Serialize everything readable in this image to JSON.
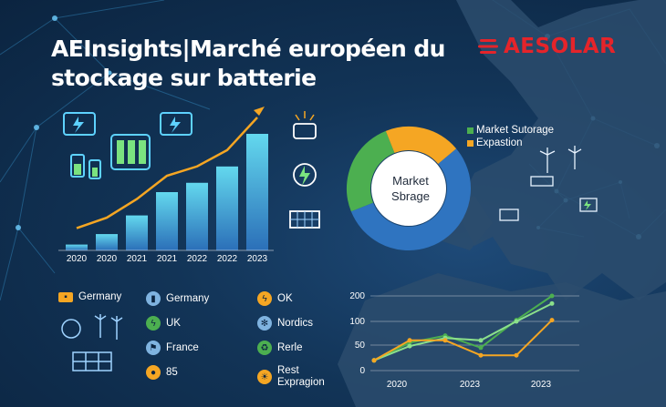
{
  "title": "AEInsights|Marché européen du stockage sur batterie",
  "brand": {
    "name": "AESOLAR",
    "color": "#e5242a"
  },
  "bar_chart": {
    "years": [
      "2020",
      "2020",
      "2021",
      "2021",
      "2022",
      "2022",
      "2023"
    ],
    "values": [
      5,
      14,
      30,
      50,
      58,
      72,
      100
    ]
  },
  "donut": {
    "center_label_line1": "Market",
    "center_label_line2": "Sbrage",
    "legend": [
      {
        "label": "Market Sutorage",
        "color": "#4caf50"
      },
      {
        "label": "Expastion",
        "color": "#f5a623"
      }
    ],
    "slices": [
      {
        "value": 55,
        "color": "#2f74c0"
      },
      {
        "value": 25,
        "color": "#4caf50"
      },
      {
        "value": 20,
        "color": "#f5a623"
      }
    ]
  },
  "list_col1": [
    {
      "label": "Germany",
      "icon": "battery-icon",
      "color": "#f5a623"
    },
    {
      "label": "",
      "icon": "recycle-wind-icon",
      "color": "#9fd3ff"
    },
    {
      "label": "",
      "icon": "solar-panel-icon",
      "color": "#9fd3ff"
    }
  ],
  "list_col2": [
    {
      "label": "Germany",
      "icon": "battery-icon",
      "color": "#7fb3e0"
    },
    {
      "label": "UK",
      "icon": "bolt-icon",
      "color": "#4caf50"
    },
    {
      "label": "France",
      "icon": "flag-icon",
      "color": "#7fb3e0"
    },
    {
      "label": "85",
      "icon": "coin-icon",
      "color": "#f5a623"
    }
  ],
  "list_col3": [
    {
      "label": "OK",
      "icon": "bolt-icon",
      "color": "#f5a623"
    },
    {
      "label": "Nordics",
      "icon": "gear-icon",
      "color": "#7fb3e0"
    },
    {
      "label": "Rerle",
      "icon": "recycle-icon",
      "color": "#4caf50"
    },
    {
      "label": "Rest",
      "label2": "Expragion",
      "icon": "sun-icon",
      "color": "#f5a623"
    }
  ],
  "chart_data": {
    "type": "line",
    "x_ticks": [
      "2020",
      "2023"
    ],
    "y_ticks": [
      "200",
      "100",
      "50",
      "0"
    ],
    "series": [
      {
        "color": "#4caf50",
        "points": [
          [
            0,
            20
          ],
          [
            1,
            55
          ],
          [
            2,
            70
          ],
          [
            3,
            45
          ],
          [
            4,
            105
          ],
          [
            5,
            200
          ]
        ]
      },
      {
        "color": "#8be08b",
        "points": [
          [
            0,
            20
          ],
          [
            1,
            48
          ],
          [
            2,
            65
          ],
          [
            3,
            60
          ],
          [
            4,
            100
          ],
          [
            5,
            170
          ]
        ]
      },
      {
        "color": "#f5a623",
        "points": [
          [
            0,
            20
          ],
          [
            1,
            60
          ],
          [
            2,
            60
          ],
          [
            3,
            30
          ],
          [
            4,
            30
          ],
          [
            5,
            105
          ]
        ]
      }
    ]
  }
}
